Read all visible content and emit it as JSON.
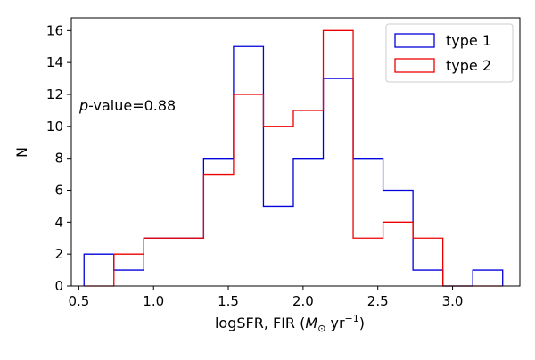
{
  "chart_data": {
    "type": "step",
    "title": "",
    "xlabel_parts": {
      "prefix": "logSFR, FIR (",
      "sym": "M",
      "sub": "⊙",
      "unit": " yr",
      "sup": "−1",
      "suffix": ")"
    },
    "ylabel": "N",
    "xlim": [
      0.45,
      3.45
    ],
    "ylim": [
      0,
      16.8
    ],
    "xticks": [
      0.5,
      1.0,
      1.5,
      2.0,
      2.5,
      3.0
    ],
    "xtick_labels": [
      "0.5",
      "1.0",
      "1.5",
      "2.0",
      "2.5",
      "3.0"
    ],
    "yticks": [
      0,
      2,
      4,
      6,
      8,
      10,
      12,
      14,
      16
    ],
    "ytick_labels": [
      "0",
      "2",
      "4",
      "6",
      "8",
      "10",
      "12",
      "14",
      "16"
    ],
    "annotation": {
      "italic": "p",
      "rest": "-value=0.88"
    },
    "legend_position": "upper right",
    "bin_edges": [
      0.535,
      0.735,
      0.935,
      1.135,
      1.335,
      1.535,
      1.735,
      1.935,
      2.135,
      2.335,
      2.535,
      2.735,
      2.935,
      3.135,
      3.335
    ],
    "series": [
      {
        "name": "type 1",
        "color": "#0000dd",
        "counts": [
          2,
          1,
          3,
          3,
          8,
          15,
          5,
          8,
          13,
          8,
          6,
          1,
          0,
          1
        ]
      },
      {
        "name": "type 2",
        "color": "#ee0000",
        "counts": [
          0,
          2,
          3,
          3,
          7,
          12,
          10,
          11,
          16,
          3,
          4,
          3,
          0,
          0
        ]
      }
    ]
  }
}
